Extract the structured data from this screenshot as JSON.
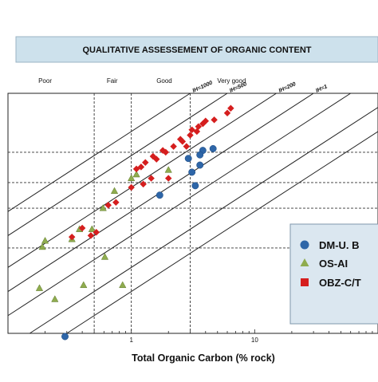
{
  "chart_data": {
    "type": "scatter",
    "title": "QUALITATIVE ASSESSEMENT OF ORGANIC CONTENT",
    "xlabel": "Total Organic Carbon (% rock)",
    "ylabel": "",
    "x_scale": "log",
    "xlim": [
      0.1,
      100
    ],
    "ylim": [
      0.03,
      30
    ],
    "x_ticks": [
      {
        "value": 1,
        "label": "1"
      },
      {
        "value": 10,
        "label": "10"
      }
    ],
    "x_thresholds": [
      0.5,
      1,
      3
    ],
    "y_thresholds": [
      0.35,
      1.1,
      2.3,
      5.5
    ],
    "categories": [
      {
        "label": "Poor",
        "x": 0.2
      },
      {
        "label": "Fair",
        "x": 0.7
      },
      {
        "label": "Good",
        "x": 1.85
      },
      {
        "label": "Very good",
        "x": 6.5
      }
    ],
    "ih_lines": [
      {
        "label": "IH=1000",
        "factor": 10,
        "x_range": [
          0.1,
          3.3
        ]
      },
      {
        "label": "IH=500",
        "factor": 5,
        "x_range": [
          0.1,
          12
        ]
      },
      {
        "label": "IH=200",
        "factor": 2,
        "x_range": [
          0.1,
          32
        ]
      },
      {
        "label": "IH=1",
        "factor": 1,
        "x_range": [
          0.1,
          100
        ]
      },
      {
        "label": "",
        "factor": 0.5,
        "x_range": [
          0.1,
          100
        ]
      },
      {
        "label": "",
        "factor": 0.2,
        "x_range": [
          0.1,
          100
        ]
      },
      {
        "label": "",
        "factor": 0.1,
        "x_range": [
          0.1,
          100
        ]
      }
    ],
    "grid": false,
    "legend_position": "right",
    "series": [
      {
        "name": "DM-U. B",
        "marker": "circle",
        "color": "#2e66a8",
        "points": [
          {
            "x": 3.8,
            "y": 5.8
          },
          {
            "x": 4.6,
            "y": 6.1
          },
          {
            "x": 3.6,
            "y": 5.1
          },
          {
            "x": 2.9,
            "y": 4.6
          },
          {
            "x": 3.6,
            "y": 3.8
          },
          {
            "x": 3.1,
            "y": 3.1
          },
          {
            "x": 3.3,
            "y": 2.1
          },
          {
            "x": 1.7,
            "y": 1.6
          },
          {
            "x": 0.29,
            "y": 0.013
          }
        ]
      },
      {
        "name": "OS-AI",
        "marker": "triangle",
        "color": "#8fac4e",
        "points": [
          {
            "x": 2.0,
            "y": 3.3
          },
          {
            "x": 1.0,
            "y": 2.6
          },
          {
            "x": 1.1,
            "y": 2.9
          },
          {
            "x": 0.73,
            "y": 1.8
          },
          {
            "x": 0.59,
            "y": 1.1
          },
          {
            "x": 0.48,
            "y": 0.6
          },
          {
            "x": 0.38,
            "y": 0.6
          },
          {
            "x": 0.33,
            "y": 0.45
          },
          {
            "x": 0.2,
            "y": 0.43
          },
          {
            "x": 0.19,
            "y": 0.36
          },
          {
            "x": 0.61,
            "y": 0.27
          },
          {
            "x": 0.85,
            "y": 0.12
          },
          {
            "x": 0.41,
            "y": 0.12
          },
          {
            "x": 0.18,
            "y": 0.11
          },
          {
            "x": 0.24,
            "y": 0.08
          }
        ]
      },
      {
        "name": "OBZ-C/T",
        "marker": "square",
        "color": "#d51e1e",
        "points": [
          {
            "x": 6.0,
            "y": 17
          },
          {
            "x": 6.4,
            "y": 19.5
          },
          {
            "x": 4.7,
            "y": 14
          },
          {
            "x": 4.0,
            "y": 13.5
          },
          {
            "x": 3.5,
            "y": 11.5
          },
          {
            "x": 3.8,
            "y": 12.5
          },
          {
            "x": 3.1,
            "y": 10.5
          },
          {
            "x": 3.4,
            "y": 10
          },
          {
            "x": 3.0,
            "y": 9
          },
          {
            "x": 2.5,
            "y": 8
          },
          {
            "x": 2.6,
            "y": 7.5
          },
          {
            "x": 2.8,
            "y": 6.5
          },
          {
            "x": 2.2,
            "y": 6.5
          },
          {
            "x": 1.9,
            "y": 5.5
          },
          {
            "x": 1.8,
            "y": 5.8
          },
          {
            "x": 1.5,
            "y": 4.9
          },
          {
            "x": 1.6,
            "y": 4.5
          },
          {
            "x": 1.3,
            "y": 4.1
          },
          {
            "x": 1.2,
            "y": 3.6
          },
          {
            "x": 1.45,
            "y": 2.6
          },
          {
            "x": 1.1,
            "y": 3.4
          },
          {
            "x": 1.25,
            "y": 2.2
          },
          {
            "x": 2.0,
            "y": 2.6
          },
          {
            "x": 1.0,
            "y": 2.0
          },
          {
            "x": 0.75,
            "y": 1.3
          },
          {
            "x": 0.65,
            "y": 1.2
          },
          {
            "x": 0.4,
            "y": 0.62
          },
          {
            "x": 0.47,
            "y": 0.5
          },
          {
            "x": 0.52,
            "y": 0.55
          },
          {
            "x": 0.33,
            "y": 0.48
          }
        ]
      }
    ]
  }
}
